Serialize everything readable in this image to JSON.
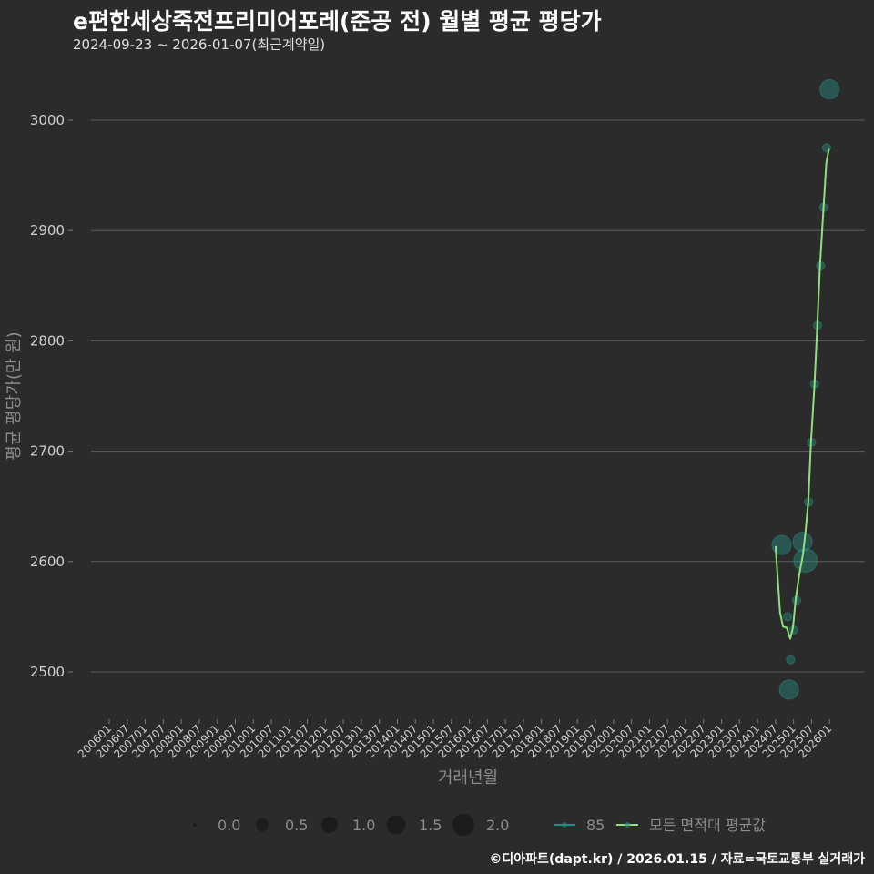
{
  "header": {
    "title": "e편한세상죽전프리미어포레(준공 전) 월별 평균 평당가",
    "subtitle": "2024-09-23 ~ 2026-01-07(최근계약일)"
  },
  "footer": {
    "credit": "©디아파트(dapt.kr) / 2026.01.15 / 자료=국토교통부 실거래가"
  },
  "colors": {
    "background": "#2b2b2b",
    "grid": "#5e5e5e",
    "series_85": "#2a8c80",
    "avg_line": "#8ee07a"
  },
  "chart_data": {
    "type": "scatter+line",
    "title": "e편한세상죽전프리미어포레(준공 전) 월별 평균 평당가",
    "xlabel": "거래년월",
    "ylabel": "평균 평당가(만 원)",
    "ylim": [
      2470,
      3040
    ],
    "yticks": [
      2500,
      2600,
      2700,
      2800,
      2900,
      3000
    ],
    "xticks": [
      "200601",
      "200607",
      "200701",
      "200707",
      "200801",
      "200807",
      "200901",
      "200907",
      "201001",
      "201007",
      "201101",
      "201107",
      "201201",
      "201207",
      "201301",
      "201307",
      "201401",
      "201407",
      "201501",
      "201507",
      "201601",
      "201607",
      "201701",
      "201707",
      "201801",
      "201807",
      "201901",
      "201907",
      "202001",
      "202007",
      "202101",
      "202107",
      "202201",
      "202207",
      "202301",
      "202307",
      "202401",
      "202407",
      "202501",
      "202507",
      "202601"
    ],
    "grid": true,
    "legend": {
      "size_title": "",
      "size_entries": [
        "0.0",
        "0.5",
        "1.0",
        "1.5",
        "2.0"
      ],
      "series_entries": [
        "85",
        "모든 면적대 평균값"
      ],
      "position": "bottom"
    },
    "series": [
      {
        "name": "85",
        "kind": "bubble",
        "points": [
          {
            "month_index": 224.0,
            "value": 2615,
            "size": 1.0
          },
          {
            "month_index": 226.0,
            "value": 2550,
            "size": 0.1
          },
          {
            "month_index": 226.5,
            "value": 2484,
            "size": 1.0
          },
          {
            "month_index": 227.0,
            "value": 2511,
            "size": 0.1
          },
          {
            "month_index": 228.0,
            "value": 2538,
            "size": 0.1
          },
          {
            "month_index": 229.0,
            "value": 2565,
            "size": 0.1
          },
          {
            "month_index": 231.0,
            "value": 2618,
            "size": 1.0
          },
          {
            "month_index": 232.0,
            "value": 2601,
            "size": 1.6
          },
          {
            "month_index": 233.0,
            "value": 2654,
            "size": 0.1
          },
          {
            "month_index": 234.0,
            "value": 2708,
            "size": 0.1
          },
          {
            "month_index": 235.0,
            "value": 2761,
            "size": 0.1
          },
          {
            "month_index": 236.0,
            "value": 2814,
            "size": 0.1
          },
          {
            "month_index": 237.0,
            "value": 2868,
            "size": 0.1
          },
          {
            "month_index": 238.0,
            "value": 2921,
            "size": 0.1
          },
          {
            "month_index": 239.0,
            "value": 2975,
            "size": 0.1
          },
          {
            "month_index": 240.0,
            "value": 3028,
            "size": 1.0
          }
        ]
      },
      {
        "name": "모든 면적대 평균값",
        "kind": "line",
        "points": [
          {
            "month_index": 222.0,
            "value": 2614
          },
          {
            "month_index": 223.5,
            "value": 2554
          },
          {
            "month_index": 224.5,
            "value": 2541
          },
          {
            "month_index": 225.7,
            "value": 2540
          },
          {
            "month_index": 226.9,
            "value": 2530
          },
          {
            "month_index": 227.8,
            "value": 2540
          },
          {
            "month_index": 228.7,
            "value": 2565
          },
          {
            "month_index": 229.9,
            "value": 2588
          },
          {
            "month_index": 231.1,
            "value": 2606
          },
          {
            "month_index": 232.0,
            "value": 2627
          },
          {
            "month_index": 232.9,
            "value": 2654
          },
          {
            "month_index": 233.8,
            "value": 2708
          },
          {
            "month_index": 235.0,
            "value": 2761
          },
          {
            "month_index": 235.9,
            "value": 2814
          },
          {
            "month_index": 236.8,
            "value": 2868
          },
          {
            "month_index": 238.0,
            "value": 2921
          },
          {
            "month_index": 238.9,
            "value": 2961
          },
          {
            "month_index": 239.8,
            "value": 2974
          }
        ]
      }
    ]
  }
}
